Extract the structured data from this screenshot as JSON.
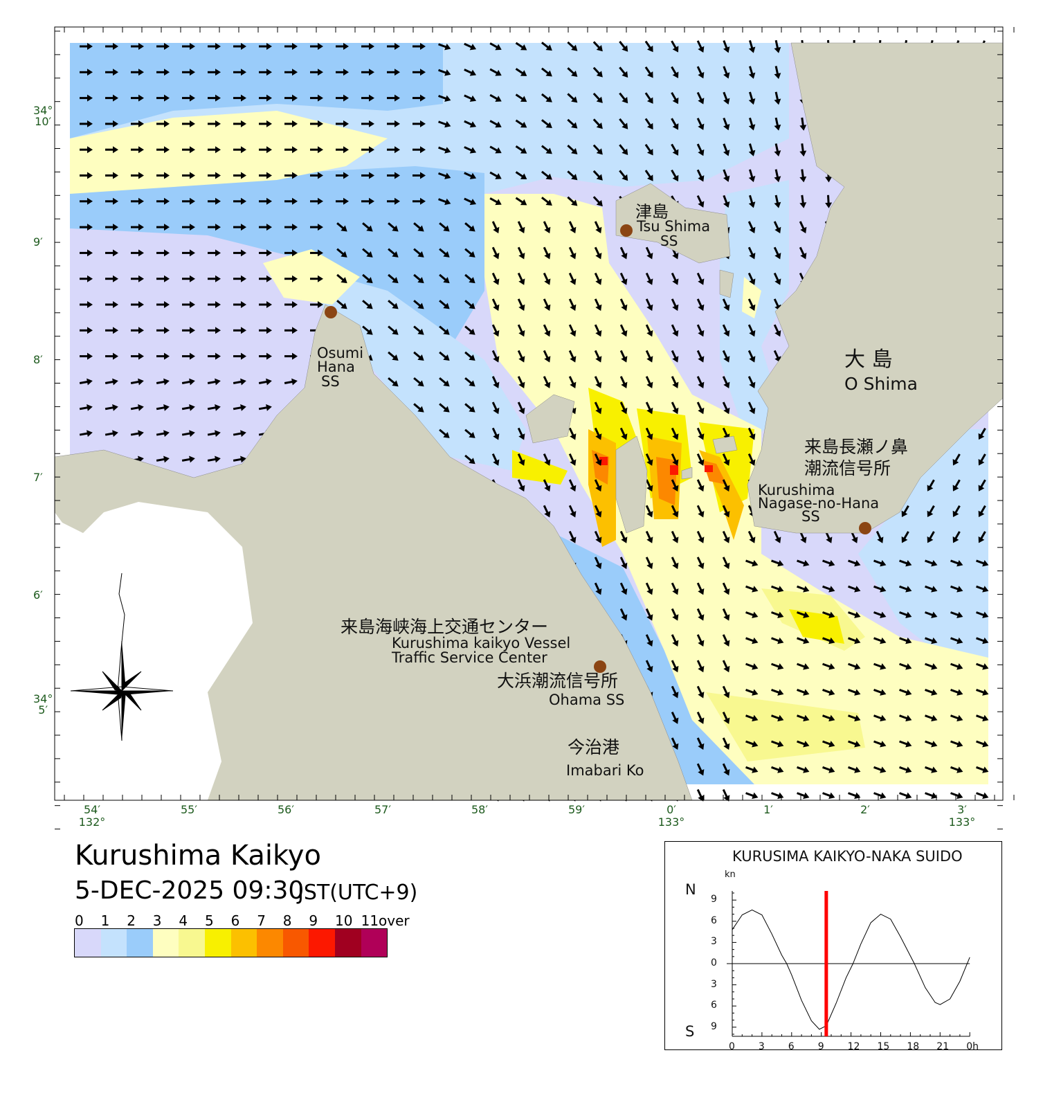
{
  "map": {
    "title": "Kurushima Kaikyo",
    "datetime": "5-DEC-2025 09:30",
    "timezone": "JST(UTC+9)",
    "land_color": "#d2d2c0",
    "labels": {
      "tsushima_jp": "津島",
      "tsushima_en": "Tsu Shima",
      "tsushima_ss": "SS",
      "osumi_1": "Osumi",
      "osumi_2": "Hana",
      "osumi_3": "SS",
      "oshima_jp": "大 島",
      "oshima_en": "O Shima",
      "nagase_jp1": "来島長瀬ノ鼻",
      "nagase_jp2": "潮流信号所",
      "nagase_en1": "Kurushima",
      "nagase_en2": "Nagase-no-Hana",
      "nagase_en3": "SS",
      "vts_jp": "来島海峡海上交通センター",
      "vts_en1": "Kurushima kaikyo Vessel",
      "vts_en2": "Traffic Service Center",
      "ohama_jp": "大浜潮流信号所",
      "ohama_en": "Ohama SS",
      "imabari_jp": "今治港",
      "imabari_en": "Imabari Ko"
    },
    "lat_ticks": [
      {
        "deg": "34°",
        "min": "10′"
      },
      {
        "deg": "",
        "min": "9′"
      },
      {
        "deg": "",
        "min": "8′"
      },
      {
        "deg": "",
        "min": "7′"
      },
      {
        "deg": "",
        "min": "6′"
      },
      {
        "deg": "34°",
        "min": "5′"
      }
    ],
    "lon_ticks": [
      {
        "min": "54′",
        "deg": "132°"
      },
      {
        "min": "55′",
        "deg": ""
      },
      {
        "min": "56′",
        "deg": ""
      },
      {
        "min": "57′",
        "deg": ""
      },
      {
        "min": "58′",
        "deg": ""
      },
      {
        "min": "59′",
        "deg": ""
      },
      {
        "min": "0′",
        "deg": "133°"
      },
      {
        "min": "1′",
        "deg": ""
      },
      {
        "min": "2′",
        "deg": ""
      },
      {
        "min": "3′",
        "deg": "133°"
      }
    ]
  },
  "speed_scale": {
    "labels": [
      "0",
      "1",
      "2",
      "3",
      "4",
      "5",
      "6",
      "7",
      "8",
      "9",
      "10",
      "11over [kn]"
    ],
    "colors": [
      "#d8d8fa",
      "#c4e2fd",
      "#9accfa",
      "#fefec0",
      "#f8f890",
      "#f8f000",
      "#fcc000",
      "#fc8800",
      "#f85800",
      "#fc1800",
      "#a00020",
      "#b00058"
    ]
  },
  "tide_chart": {
    "title": "KURUSIMA KAIKYO-NAKA SUIDO",
    "unit": "kn",
    "north_label": "N",
    "south_label": "S",
    "y_ticks": [
      "9",
      "6",
      "3",
      "0",
      "3",
      "6",
      "9"
    ],
    "x_ticks": [
      "0",
      "3",
      "6",
      "9",
      "12",
      "15",
      "18",
      "21",
      "0h"
    ],
    "current_hour": 9.5,
    "current_line_color": "#ff0000",
    "curve": [
      [
        0,
        4.8
      ],
      [
        1,
        6.9
      ],
      [
        2,
        7.6
      ],
      [
        3,
        6.9
      ],
      [
        4,
        4.2
      ],
      [
        5,
        1.2
      ],
      [
        5.5,
        0
      ],
      [
        6,
        -1.6
      ],
      [
        7,
        -5.2
      ],
      [
        8,
        -8.1
      ],
      [
        8.8,
        -9.3
      ],
      [
        9.5,
        -8.8
      ],
      [
        10.5,
        -5.6
      ],
      [
        11.5,
        -2.0
      ],
      [
        12.2,
        0
      ],
      [
        13,
        2.8
      ],
      [
        14,
        5.8
      ],
      [
        15,
        7.0
      ],
      [
        16,
        6.3
      ],
      [
        17,
        3.8
      ],
      [
        18.4,
        0
      ],
      [
        19.5,
        -3.4
      ],
      [
        20.5,
        -5.5
      ],
      [
        21,
        -5.8
      ],
      [
        22,
        -5.0
      ],
      [
        23,
        -2.5
      ],
      [
        24,
        0.9
      ]
    ]
  }
}
